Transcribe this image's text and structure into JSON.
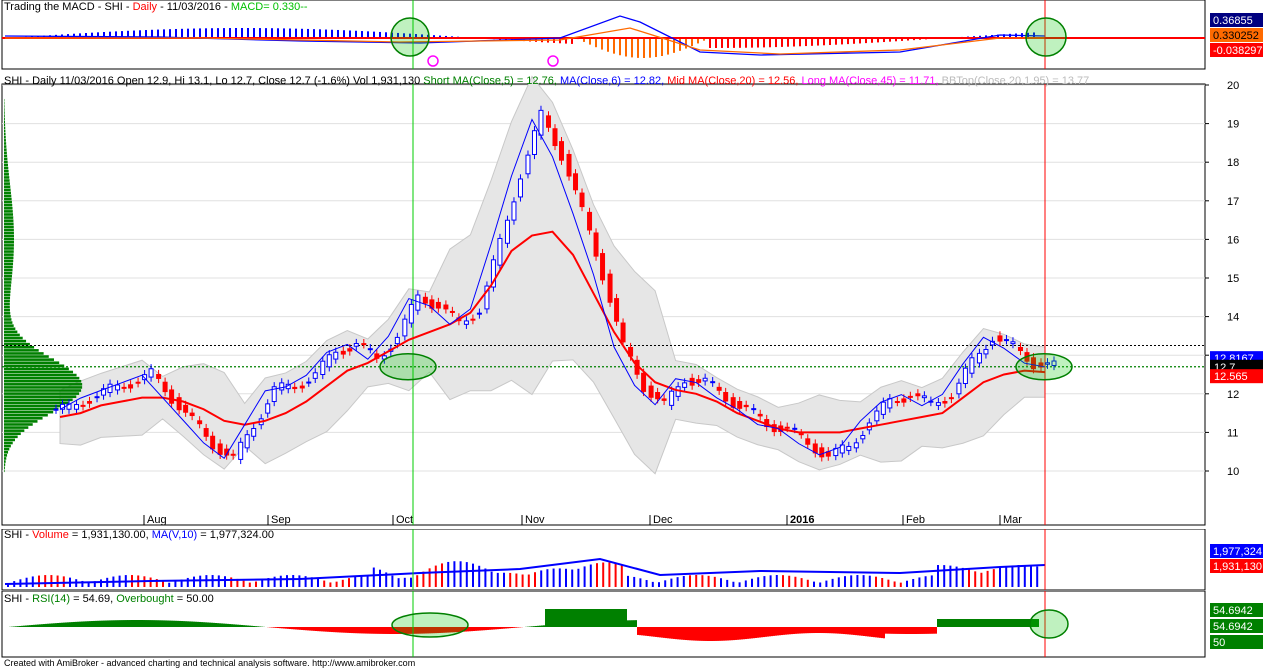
{
  "macd_pane": {
    "title": "Trading the MACD - SHI - ",
    "period": "Daily",
    "date": " - 11/03/2016 - ",
    "ind_label": "MACD= ",
    "ind_value": "0.330--",
    "axis_tags": [
      "0.36855",
      "0.330252",
      "-0.038297"
    ]
  },
  "price_pane": {
    "info": "SHI - Daily 11/03/2016 Open 12.9, Hi 13.1, Lo 12.7, Close 12.7 (-1.6%) Vol 1,931,130",
    "ma5": "Short MA(Close,5) = 12.76,",
    "ma6": "MA(Close,6) = 12.82,",
    "ma20": "Mid MA(Close,20) = 12.56,",
    "ma45": "Long MA(Close,45) = 11.71,",
    "bb": "BBTop(Close,20,1.95) = 13.77",
    "y_ticks": [
      "20",
      "19",
      "18",
      "17",
      "16",
      "15",
      "14",
      "13",
      "12",
      "11",
      "10"
    ],
    "x_labels": [
      "Aug",
      "Sep",
      "Oct",
      "Nov",
      "Dec",
      "2016",
      "Feb",
      "Mar"
    ],
    "tags": [
      "12.8167",
      "12.7",
      "12.565"
    ]
  },
  "volume_pane": {
    "prefix": "SHI - ",
    "vol_label": "Volume",
    "vol_value": " = 1,931,130.00, ",
    "ma_label": "MA(V,10)",
    "ma_value": " = 1,977,324.00",
    "tags": [
      "1,977,324",
      "1,931,130"
    ]
  },
  "rsi_pane": {
    "prefix": "SHI - ",
    "rsi_label": "RSI(14)",
    "rsi_value": " = 54.69, ",
    "ob_label": "Overbought",
    "ob_value": " = 50.00",
    "tags": [
      "54.6942",
      "54.6942",
      "50"
    ]
  },
  "footer": "Created with AmiBroker - advanced charting and technical analysis software. http://www.amibroker.com",
  "colors": {
    "up": "#0000ff",
    "down": "#ff0000",
    "green": "#008000",
    "band": "#e6e6e6",
    "accent": "#00ff00"
  },
  "chart_data": {
    "type": "line",
    "title": "SHI - Daily",
    "ylim": [
      10,
      20
    ],
    "x_labels": [
      "Aug",
      "Sep",
      "Oct",
      "Nov",
      "Dec",
      "2016",
      "Feb",
      "Mar"
    ],
    "close_path": [
      11.6,
      11.9,
      12.1,
      12.3,
      12.5,
      11.9,
      11.3,
      10.7,
      10.3,
      11.2,
      12.1,
      12.2,
      12.5,
      13.1,
      13.3,
      12.9,
      13.5,
      14.5,
      14.3,
      13.8,
      14.2,
      15.9,
      17.7,
      19.2,
      18.2,
      16.7,
      15.1,
      13.2,
      12.2,
      11.7,
      12.4,
      12.3,
      11.9,
      11.6,
      11.2,
      11.1,
      10.7,
      10.4,
      10.6,
      11.3,
      11.8,
      12.0,
      11.7,
      12.0,
      12.8,
      13.5,
      13.2,
      12.8,
      12.7
    ],
    "ma20_path": [
      11.4,
      11.5,
      11.7,
      11.8,
      11.9,
      11.9,
      11.8,
      11.6,
      11.3,
      11.2,
      11.3,
      11.5,
      11.8,
      12.2,
      12.6,
      12.8,
      13.1,
      13.4,
      13.6,
      13.8,
      14.1,
      14.8,
      15.7,
      16.1,
      16.2,
      15.6,
      14.6,
      13.6,
      12.8,
      12.3,
      12.1,
      12.0,
      11.8,
      11.5,
      11.3,
      11.1,
      11.0,
      11.0,
      11.0,
      11.1,
      11.2,
      11.3,
      11.4,
      11.5,
      11.9,
      12.3,
      12.5,
      12.6,
      12.56
    ],
    "series": [
      {
        "name": "Close"
      },
      {
        "name": "Mid MA(Close,20)"
      }
    ]
  }
}
